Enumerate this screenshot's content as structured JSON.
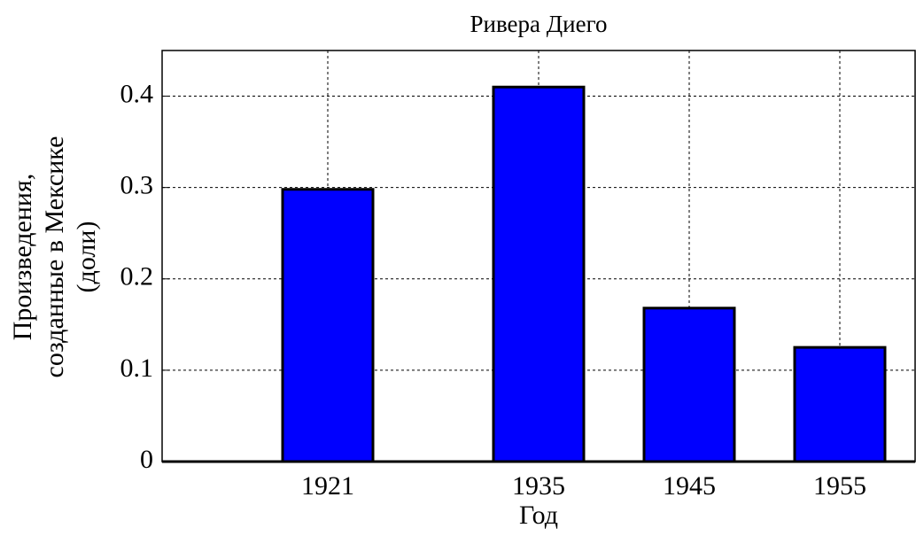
{
  "chart_data": {
    "type": "bar",
    "title": "Ривера Диего",
    "xlabel": "Год",
    "ylabel": [
      "Произведения,",
      "созданные в Мексике",
      "(доли)"
    ],
    "x": [
      1921,
      1935,
      1945,
      1955
    ],
    "values": [
      0.298,
      0.41,
      0.168,
      0.125
    ],
    "color": "#0000ff",
    "xlim": [
      1910,
      1960
    ],
    "xticks": [
      1921,
      1935,
      1945,
      1955
    ],
    "ylim": [
      0,
      0.45
    ],
    "yticks": [
      0,
      0.1,
      0.2,
      0.3,
      0.4
    ],
    "grid": true
  }
}
